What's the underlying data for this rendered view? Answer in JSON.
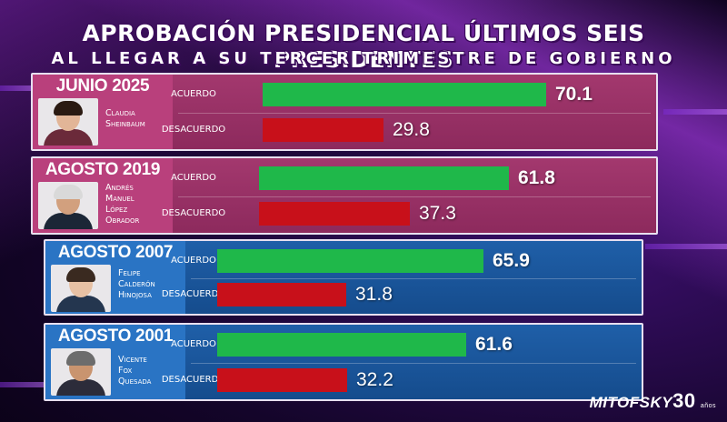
{
  "header": {
    "title": "APROBACIÓN PRESIDENCIAL ÚLTIMOS SEIS PRESIDENTES",
    "subtitle": "AL LLEGAR A SU TERCER TRIMESTRE DE GOBIERNO"
  },
  "brand": {
    "name": "MITOFSKY",
    "anniversary": "30",
    "anniversary_sub": "años"
  },
  "colors": {
    "acuerdo": "#1fb84a",
    "desacuerdo": "#c8101a",
    "magenta_panel": "#a3386e",
    "blue_panel": "#1f5fa8"
  },
  "chart_data": {
    "type": "bar",
    "title": "APROBACIÓN PRESIDENCIAL ÚLTIMOS SEIS PRESIDENTES",
    "subtitle": "AL LLEGAR A SU TERCER TRIMESTRE DE GOBIERNO",
    "categories": [
      "JUNIO 2025",
      "AGOSTO 2019",
      "AGOSTO 2007",
      "AGOSTO 2001"
    ],
    "presidents": [
      "Claudia Sheinbaum",
      "Andrés Manuel López Obrador",
      "Felipe Calderón Hinojosa",
      "Vicente Fox Quesada"
    ],
    "series": [
      {
        "name": "ACUERDO",
        "values": [
          70.1,
          61.8,
          65.9,
          61.6
        ]
      },
      {
        "name": "DESACUERDO",
        "values": [
          29.8,
          37.3,
          31.8,
          32.2
        ]
      }
    ],
    "ylim": [
      0,
      100
    ]
  },
  "panels": [
    {
      "date": "JUNIO 2025",
      "name_lines": [
        "Claudia",
        "Sheinbaum"
      ],
      "acuerdo_label": "ACUERDO",
      "desacuerdo_label": "DESACUERDO",
      "acuerdo": "70.1",
      "desacuerdo": "29.8"
    },
    {
      "date": "AGOSTO 2019",
      "name_lines": [
        "Andrés",
        "Manuel",
        "López",
        "Obrador"
      ],
      "acuerdo_label": "ACUERDO",
      "desacuerdo_label": "DESACUERDO",
      "acuerdo": "61.8",
      "desacuerdo": "37.3"
    },
    {
      "date": "AGOSTO 2007",
      "name_lines": [
        "Felipe",
        "Calderón",
        "Hinojosa"
      ],
      "acuerdo_label": "ACUERDO",
      "desacuerdo_label": "DESACUERDO",
      "acuerdo": "65.9",
      "desacuerdo": "31.8"
    },
    {
      "date": "AGOSTO 2001",
      "name_lines": [
        "Vicente",
        "Fox",
        "Quesada"
      ],
      "acuerdo_label": "ACUERDO",
      "desacuerdo_label": "DESACUERDO",
      "acuerdo": "61.6",
      "desacuerdo": "32.2"
    }
  ]
}
